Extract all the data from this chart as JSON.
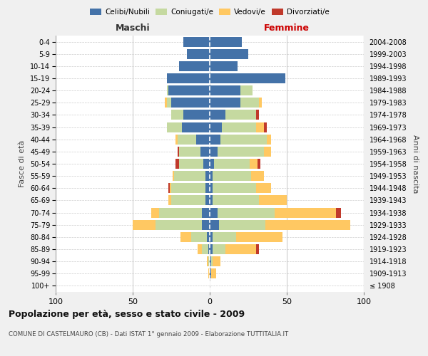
{
  "age_groups": [
    "100+",
    "95-99",
    "90-94",
    "85-89",
    "80-84",
    "75-79",
    "70-74",
    "65-69",
    "60-64",
    "55-59",
    "50-54",
    "45-49",
    "40-44",
    "35-39",
    "30-34",
    "25-29",
    "20-24",
    "15-19",
    "10-14",
    "5-9",
    "0-4"
  ],
  "birth_years": [
    "≤ 1908",
    "1909-1913",
    "1914-1918",
    "1919-1923",
    "1924-1928",
    "1929-1933",
    "1934-1938",
    "1939-1943",
    "1944-1948",
    "1949-1953",
    "1954-1958",
    "1959-1963",
    "1964-1968",
    "1969-1973",
    "1974-1978",
    "1979-1983",
    "1984-1988",
    "1989-1993",
    "1994-1998",
    "1999-2003",
    "2004-2008"
  ],
  "maschi_celibe": [
    0,
    0,
    0,
    1,
    2,
    5,
    5,
    3,
    3,
    3,
    4,
    6,
    9,
    18,
    17,
    25,
    27,
    28,
    20,
    15,
    17
  ],
  "maschi_coniugato": [
    0,
    0,
    1,
    4,
    10,
    30,
    28,
    22,
    22,
    20,
    16,
    14,
    12,
    10,
    8,
    3,
    1,
    0,
    0,
    0,
    0
  ],
  "maschi_vedovo": [
    0,
    1,
    1,
    3,
    7,
    15,
    5,
    2,
    1,
    1,
    0,
    0,
    1,
    0,
    0,
    1,
    0,
    0,
    0,
    0,
    0
  ],
  "maschi_divorziato": [
    0,
    0,
    0,
    0,
    0,
    0,
    0,
    0,
    1,
    0,
    2,
    1,
    0,
    0,
    0,
    0,
    0,
    0,
    0,
    0,
    0
  ],
  "femmine_celibe": [
    0,
    1,
    1,
    2,
    2,
    6,
    5,
    2,
    2,
    2,
    3,
    5,
    7,
    8,
    10,
    20,
    20,
    49,
    18,
    25,
    21
  ],
  "femmine_coniugato": [
    0,
    0,
    1,
    8,
    15,
    30,
    37,
    30,
    28,
    25,
    23,
    30,
    30,
    22,
    20,
    12,
    8,
    0,
    0,
    0,
    0
  ],
  "femmine_vedovo": [
    0,
    3,
    5,
    20,
    30,
    55,
    40,
    18,
    10,
    8,
    5,
    5,
    3,
    5,
    0,
    2,
    0,
    0,
    0,
    0,
    0
  ],
  "femmine_divorziato": [
    0,
    0,
    0,
    2,
    0,
    0,
    3,
    0,
    0,
    0,
    2,
    0,
    0,
    2,
    2,
    0,
    0,
    0,
    0,
    0,
    0
  ],
  "colors": {
    "celibe": "#4472a8",
    "coniugato": "#c5d9a0",
    "vedovo": "#ffc862",
    "divorziato": "#c0392b"
  },
  "xlim": 100,
  "title": "Popolazione per età, sesso e stato civile - 2009",
  "subtitle": "COMUNE DI CASTELMAURO (CB) - Dati ISTAT 1° gennaio 2009 - Elaborazione TUTTITALIA.IT",
  "ylabel_left": "Fasce di età",
  "ylabel_right": "Anni di nascita",
  "label_maschi": "Maschi",
  "label_femmine": "Femmine",
  "bg_color": "#f0f0f0",
  "plot_bg_color": "#ffffff"
}
